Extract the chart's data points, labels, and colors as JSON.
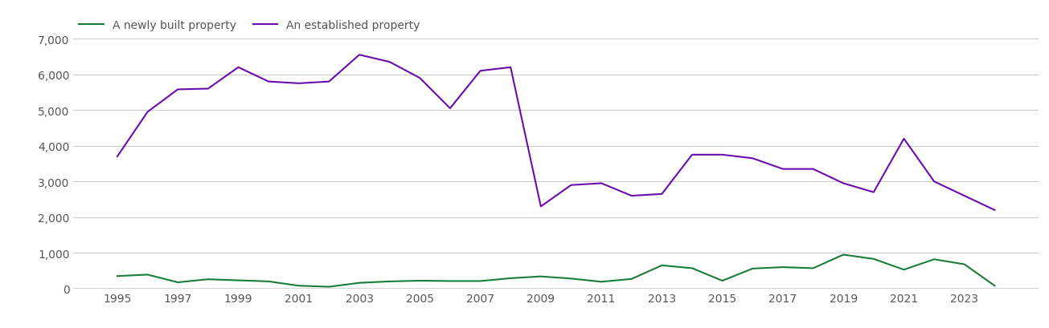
{
  "years": [
    1995,
    1996,
    1997,
    1998,
    1999,
    2000,
    2001,
    2002,
    2003,
    2004,
    2005,
    2006,
    2007,
    2008,
    2009,
    2010,
    2011,
    2012,
    2013,
    2014,
    2015,
    2016,
    2017,
    2018,
    2019,
    2020,
    2021,
    2022,
    2023,
    2024
  ],
  "new_homes": [
    350,
    390,
    175,
    260,
    230,
    200,
    80,
    50,
    160,
    200,
    220,
    210,
    210,
    290,
    340,
    280,
    190,
    270,
    650,
    570,
    220,
    560,
    600,
    570,
    950,
    830,
    530,
    820,
    680,
    80
  ],
  "established_homes": [
    3700,
    4950,
    5580,
    5600,
    6200,
    5800,
    5750,
    5800,
    6550,
    6350,
    5900,
    5050,
    6100,
    6200,
    2300,
    2900,
    2950,
    2600,
    2650,
    3750,
    3750,
    3650,
    3350,
    3350,
    2950,
    2700,
    4200,
    3000,
    2600,
    2200
  ],
  "new_homes_color": "#1a7d3a",
  "established_homes_color": "#6a0dad",
  "new_homes_label": "A newly built property",
  "established_homes_label": "An established property",
  "ylim": [
    0,
    7000
  ],
  "yticks": [
    0,
    1000,
    2000,
    3000,
    4000,
    5000,
    6000,
    7000
  ],
  "xticks": [
    1995,
    1997,
    1999,
    2001,
    2003,
    2005,
    2007,
    2009,
    2011,
    2013,
    2015,
    2017,
    2019,
    2021,
    2023
  ],
  "background_color": "#ffffff",
  "grid_color": "#cccccc",
  "line_width": 1.5,
  "legend_fontsize": 10,
  "tick_fontsize": 10,
  "tick_color": "#555555"
}
